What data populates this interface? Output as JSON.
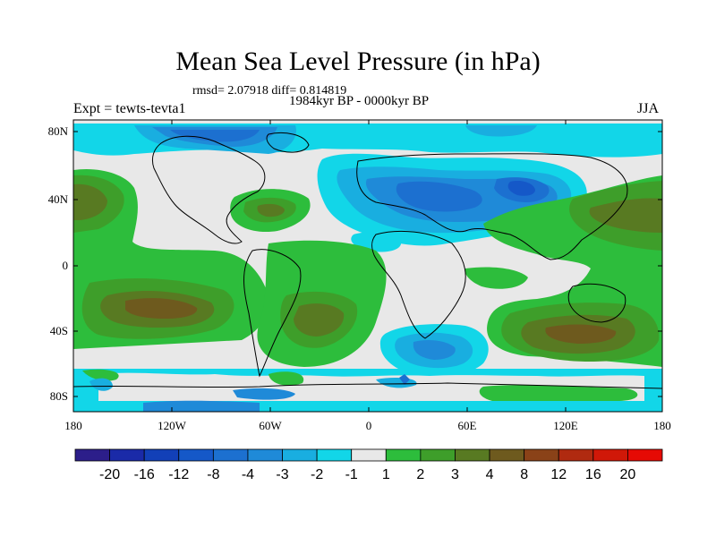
{
  "title": "Mean Sea Level Pressure (in hPa)",
  "stats": "rmsd= 2.07918 diff= 0.814819",
  "subtitle": "1984kyr BP - 0000kyr BP",
  "experiment": "Expt = tewts-tevta1",
  "season": "JJA",
  "axes": {
    "lat_labels": [
      "80N",
      "40N",
      "0",
      "40S",
      "80S"
    ],
    "lon_labels": [
      "180",
      "120W",
      "60W",
      "0",
      "60E",
      "120E",
      "180"
    ]
  },
  "colorbar": {
    "labels": [
      "-20",
      "-16",
      "-12",
      "-8",
      "-4",
      "-3",
      "-2",
      "-1",
      "1",
      "2",
      "3",
      "4",
      "8",
      "12",
      "16",
      "20"
    ],
    "colors": [
      "#2c1e8a",
      "#1a2aa8",
      "#1240b8",
      "#1558c8",
      "#1c70d0",
      "#1f8ad8",
      "#19aee0",
      "#12d6e8",
      "#e8e8e8",
      "#2dbd3c",
      "#3e9e2a",
      "#587a22",
      "#6e5a1e",
      "#8a4218",
      "#b02a10",
      "#d01808",
      "#e60a04"
    ]
  },
  "map_colors": {
    "neutral": "#e8e8e8",
    "low_1": "#12d6e8",
    "low_2": "#19aee0",
    "low_3": "#1f8ad8",
    "low_4": "#1c70d0",
    "low_5": "#1558c8",
    "high_1": "#2dbd3c",
    "high_2": "#3e9e2a",
    "high_3": "#587a22",
    "high_4": "#6e5a1e",
    "coast": "#000000"
  }
}
